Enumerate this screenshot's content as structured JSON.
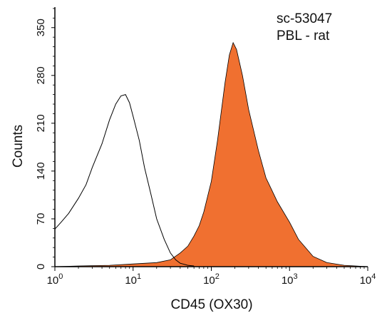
{
  "chart_data": {
    "type": "area",
    "title": "",
    "annotations": [
      "sc-53047",
      "PBL - rat"
    ],
    "xlabel": "CD45 (OX30)",
    "ylabel": "Counts",
    "x_scale": "log",
    "xlim": [
      1,
      10000
    ],
    "ylim": [
      0,
      380
    ],
    "x_ticks": [
      {
        "value": 1,
        "base": "10",
        "exp": "0"
      },
      {
        "value": 10,
        "base": "10",
        "exp": "1"
      },
      {
        "value": 100,
        "base": "10",
        "exp": "2"
      },
      {
        "value": 1000,
        "base": "10",
        "exp": "3"
      },
      {
        "value": 10000,
        "base": "10",
        "exp": "4"
      }
    ],
    "y_ticks": [
      0,
      70,
      140,
      210,
      280,
      350
    ],
    "grid": false,
    "series": [
      {
        "style": "outline",
        "color": "#000000",
        "x": [
          1,
          1.2,
          1.5,
          2,
          2.5,
          3,
          4,
          5,
          6,
          7,
          8,
          9,
          10,
          12,
          14,
          17,
          20,
          25,
          30,
          35,
          40,
          50,
          60
        ],
        "y": [
          55,
          65,
          78,
          100,
          120,
          145,
          180,
          215,
          238,
          250,
          252,
          240,
          220,
          185,
          145,
          105,
          70,
          40,
          20,
          10,
          5,
          2,
          1
        ]
      },
      {
        "style": "filled",
        "color": "#f07030",
        "x": [
          1,
          2,
          5,
          10,
          20,
          30,
          40,
          50,
          60,
          70,
          80,
          100,
          120,
          150,
          170,
          190,
          210,
          250,
          300,
          400,
          500,
          700,
          1000,
          1300,
          1600,
          2000,
          3000,
          5000,
          7000,
          10000
        ],
        "y": [
          0,
          1,
          2,
          4,
          6,
          10,
          20,
          30,
          45,
          60,
          80,
          125,
          185,
          270,
          310,
          328,
          318,
          280,
          230,
          170,
          130,
          95,
          65,
          40,
          28,
          15,
          6,
          2,
          1,
          0
        ]
      }
    ]
  }
}
